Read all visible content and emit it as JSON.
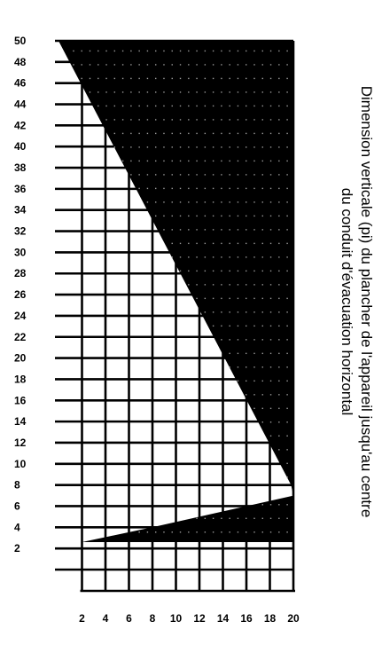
{
  "chart_data": {
    "type": "area",
    "title": "",
    "xlabel": "",
    "ylabel_lines": [
      "Dimension verticale  (pi) du plancher de l'appareil jusqu'au centre",
      "du conduit d'évacuation horizontal"
    ],
    "xlim": [
      0,
      20
    ],
    "ylim": [
      0,
      50
    ],
    "x_ticks": [
      2,
      4,
      6,
      8,
      10,
      12,
      14,
      16,
      18,
      20
    ],
    "y_ticks": [
      2,
      4,
      6,
      8,
      10,
      12,
      14,
      16,
      18,
      20,
      22,
      24,
      26,
      28,
      30,
      32,
      34,
      36,
      38,
      40,
      42,
      44,
      46,
      48,
      50
    ],
    "grid": true,
    "regions": [
      {
        "fill": "black",
        "boundary": [
          {
            "x": 0,
            "y": 50
          },
          {
            "x": 20,
            "y": 50
          },
          {
            "x": 20,
            "y": 7
          },
          {
            "x": 19.8,
            "y": 8
          }
        ]
      },
      {
        "fill": "black",
        "boundary": [
          {
            "x": 2,
            "y": 2.6
          },
          {
            "x": 20,
            "y": 2.6
          },
          {
            "x": 20,
            "y": 7
          },
          {
            "x": 8,
            "y": 4
          },
          {
            "x": 2,
            "y": 2.6
          }
        ]
      }
    ]
  }
}
